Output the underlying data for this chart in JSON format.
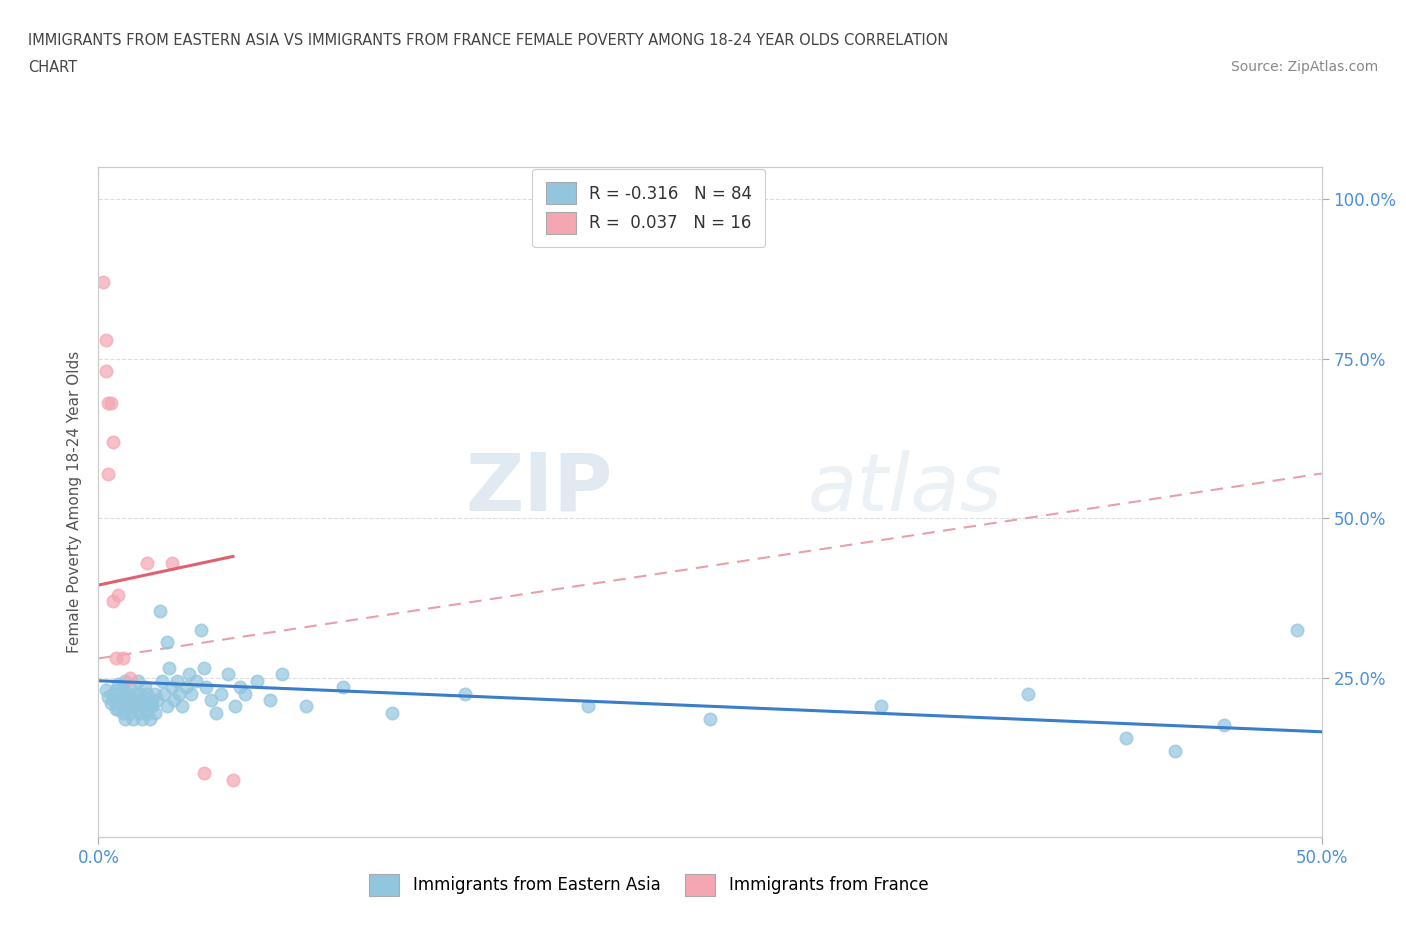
{
  "title_line1": "IMMIGRANTS FROM EASTERN ASIA VS IMMIGRANTS FROM FRANCE FEMALE POVERTY AMONG 18-24 YEAR OLDS CORRELATION",
  "title_line2": "CHART",
  "source_text": "Source: ZipAtlas.com",
  "ylabel": "Female Poverty Among 18-24 Year Olds",
  "xlim": [
    0.0,
    0.5
  ],
  "ylim": [
    0.0,
    1.05
  ],
  "xtick_positions": [
    0.0,
    0.5
  ],
  "xtick_labels": [
    "0.0%",
    "50.0%"
  ],
  "ytick_positions": [
    0.25,
    0.5,
    0.75,
    1.0
  ],
  "ytick_labels": [
    "25.0%",
    "50.0%",
    "75.0%",
    "100.0%"
  ],
  "legend_r1": "R = -0.316   N = 84",
  "legend_r2": "R =  0.037   N = 16",
  "watermark_zip": "ZIP",
  "watermark_atlas": "atlas",
  "blue_color": "#92C5DE",
  "pink_color": "#F4A6B2",
  "blue_line_color": "#3A7DC9",
  "pink_line_color": "#E06070",
  "pink_dash_color": "#E8A0A8",
  "grid_color": "#DDDDDD",
  "blue_scatter": [
    [
      0.003,
      0.23
    ],
    [
      0.004,
      0.22
    ],
    [
      0.005,
      0.21
    ],
    [
      0.006,
      0.215
    ],
    [
      0.006,
      0.225
    ],
    [
      0.007,
      0.2
    ],
    [
      0.007,
      0.23
    ],
    [
      0.008,
      0.24
    ],
    [
      0.008,
      0.2
    ],
    [
      0.009,
      0.22
    ],
    [
      0.009,
      0.21
    ],
    [
      0.01,
      0.235
    ],
    [
      0.01,
      0.195
    ],
    [
      0.01,
      0.22
    ],
    [
      0.011,
      0.205
    ],
    [
      0.011,
      0.245
    ],
    [
      0.011,
      0.185
    ],
    [
      0.012,
      0.215
    ],
    [
      0.012,
      0.205
    ],
    [
      0.012,
      0.225
    ],
    [
      0.013,
      0.195
    ],
    [
      0.013,
      0.235
    ],
    [
      0.013,
      0.215
    ],
    [
      0.014,
      0.185
    ],
    [
      0.014,
      0.205
    ],
    [
      0.015,
      0.225
    ],
    [
      0.015,
      0.205
    ],
    [
      0.016,
      0.245
    ],
    [
      0.016,
      0.215
    ],
    [
      0.017,
      0.195
    ],
    [
      0.017,
      0.225
    ],
    [
      0.018,
      0.185
    ],
    [
      0.018,
      0.205
    ],
    [
      0.019,
      0.235
    ],
    [
      0.019,
      0.215
    ],
    [
      0.02,
      0.195
    ],
    [
      0.02,
      0.225
    ],
    [
      0.021,
      0.205
    ],
    [
      0.021,
      0.185
    ],
    [
      0.022,
      0.215
    ],
    [
      0.022,
      0.205
    ],
    [
      0.023,
      0.225
    ],
    [
      0.023,
      0.195
    ],
    [
      0.024,
      0.215
    ],
    [
      0.025,
      0.355
    ],
    [
      0.026,
      0.245
    ],
    [
      0.027,
      0.225
    ],
    [
      0.028,
      0.205
    ],
    [
      0.028,
      0.305
    ],
    [
      0.029,
      0.265
    ],
    [
      0.03,
      0.235
    ],
    [
      0.031,
      0.215
    ],
    [
      0.032,
      0.245
    ],
    [
      0.033,
      0.225
    ],
    [
      0.034,
      0.205
    ],
    [
      0.036,
      0.235
    ],
    [
      0.037,
      0.255
    ],
    [
      0.038,
      0.225
    ],
    [
      0.04,
      0.245
    ],
    [
      0.042,
      0.325
    ],
    [
      0.043,
      0.265
    ],
    [
      0.044,
      0.235
    ],
    [
      0.046,
      0.215
    ],
    [
      0.048,
      0.195
    ],
    [
      0.05,
      0.225
    ],
    [
      0.053,
      0.255
    ],
    [
      0.056,
      0.205
    ],
    [
      0.058,
      0.235
    ],
    [
      0.06,
      0.225
    ],
    [
      0.065,
      0.245
    ],
    [
      0.07,
      0.215
    ],
    [
      0.075,
      0.255
    ],
    [
      0.085,
      0.205
    ],
    [
      0.1,
      0.235
    ],
    [
      0.12,
      0.195
    ],
    [
      0.15,
      0.225
    ],
    [
      0.2,
      0.205
    ],
    [
      0.25,
      0.185
    ],
    [
      0.32,
      0.205
    ],
    [
      0.38,
      0.225
    ],
    [
      0.42,
      0.155
    ],
    [
      0.44,
      0.135
    ],
    [
      0.46,
      0.175
    ],
    [
      0.49,
      0.325
    ]
  ],
  "pink_scatter": [
    [
      0.002,
      0.87
    ],
    [
      0.003,
      0.78
    ],
    [
      0.003,
      0.73
    ],
    [
      0.004,
      0.68
    ],
    [
      0.004,
      0.57
    ],
    [
      0.005,
      0.68
    ],
    [
      0.006,
      0.62
    ],
    [
      0.006,
      0.37
    ],
    [
      0.007,
      0.28
    ],
    [
      0.008,
      0.38
    ],
    [
      0.01,
      0.28
    ],
    [
      0.013,
      0.25
    ],
    [
      0.02,
      0.43
    ],
    [
      0.03,
      0.43
    ],
    [
      0.043,
      0.1
    ],
    [
      0.055,
      0.09
    ]
  ],
  "blue_trendline": [
    [
      0.0,
      0.245
    ],
    [
      0.5,
      0.165
    ]
  ],
  "pink_solid_line": [
    [
      0.0,
      0.395
    ],
    [
      0.055,
      0.44
    ]
  ],
  "pink_dashed_line": [
    [
      0.0,
      0.28
    ],
    [
      0.5,
      0.57
    ]
  ]
}
